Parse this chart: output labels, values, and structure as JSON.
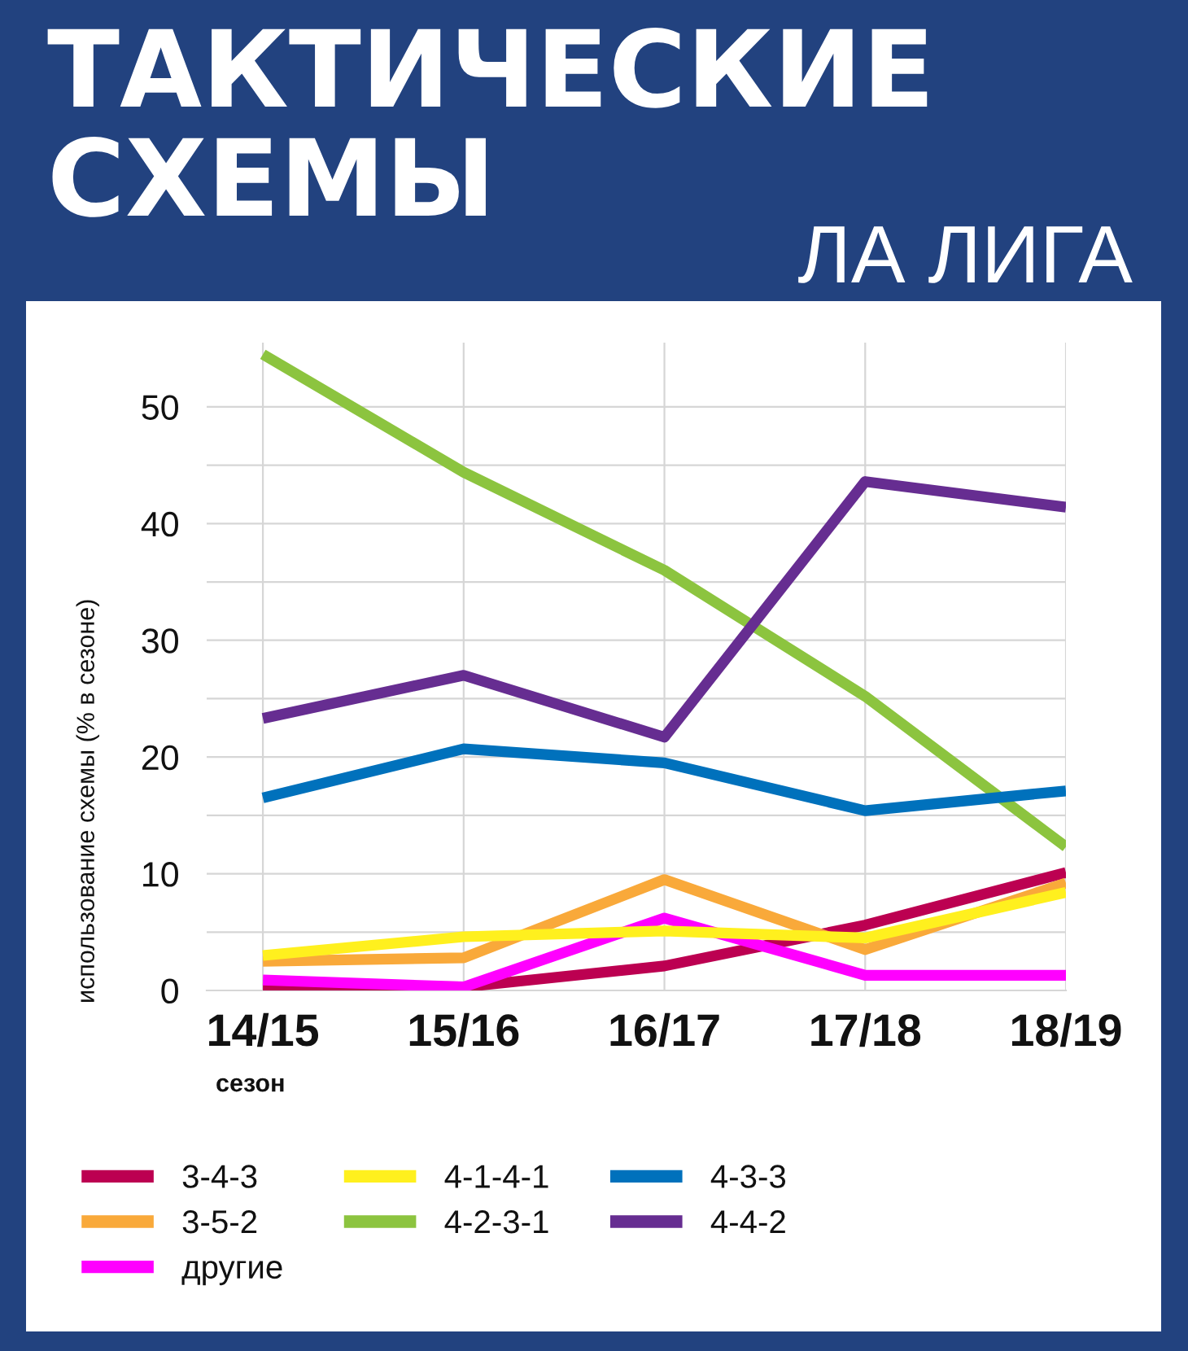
{
  "chart_data": {
    "type": "line",
    "title": "ТАКТИЧЕСКИЕ СХЕМЫ",
    "subtitle": "ЛА ЛИГА",
    "xlabel": "сезон",
    "ylabel": "использование схемы (% в сезоне)",
    "categories": [
      "14/15",
      "15/16",
      "16/17",
      "17/18",
      "18/19"
    ],
    "series": [
      {
        "name": "3-4-3",
        "color": "#bc0051",
        "values": [
          0.4,
          0.3,
          2.1,
          5.6,
          10.1
        ]
      },
      {
        "name": "3-5-2",
        "color": "#f9a93a",
        "values": [
          2.5,
          2.8,
          9.5,
          3.5,
          9.2
        ]
      },
      {
        "name": "другие",
        "color": "#ff00ff",
        "values": [
          0.9,
          0.3,
          6.2,
          1.3,
          1.3
        ]
      },
      {
        "name": "4-1-4-1",
        "color": "#fff01e",
        "values": [
          3.0,
          4.6,
          5.1,
          4.5,
          8.4
        ]
      },
      {
        "name": "4-2-3-1",
        "color": "#8cc43f",
        "values": [
          54.5,
          44.4,
          36.0,
          25.2,
          12.3
        ]
      },
      {
        "name": "4-3-3",
        "color": "#0071bc",
        "values": [
          16.5,
          20.7,
          19.5,
          15.4,
          17.1
        ]
      },
      {
        "name": "4-4-2",
        "color": "#662d91",
        "values": [
          23.3,
          27.0,
          21.7,
          43.6,
          41.4
        ]
      }
    ],
    "ylim": [
      0,
      55.5
    ],
    "yticks": [
      0,
      {
        "value": 5,
        "label": null
      },
      10,
      {
        "value": 15,
        "label": null
      },
      20,
      {
        "value": 25,
        "label": null
      },
      30,
      {
        "value": 35,
        "label": null
      },
      40,
      {
        "value": 45,
        "label": null
      },
      50
    ],
    "grid": true,
    "legend": "bottom",
    "line_style": "solid"
  }
}
